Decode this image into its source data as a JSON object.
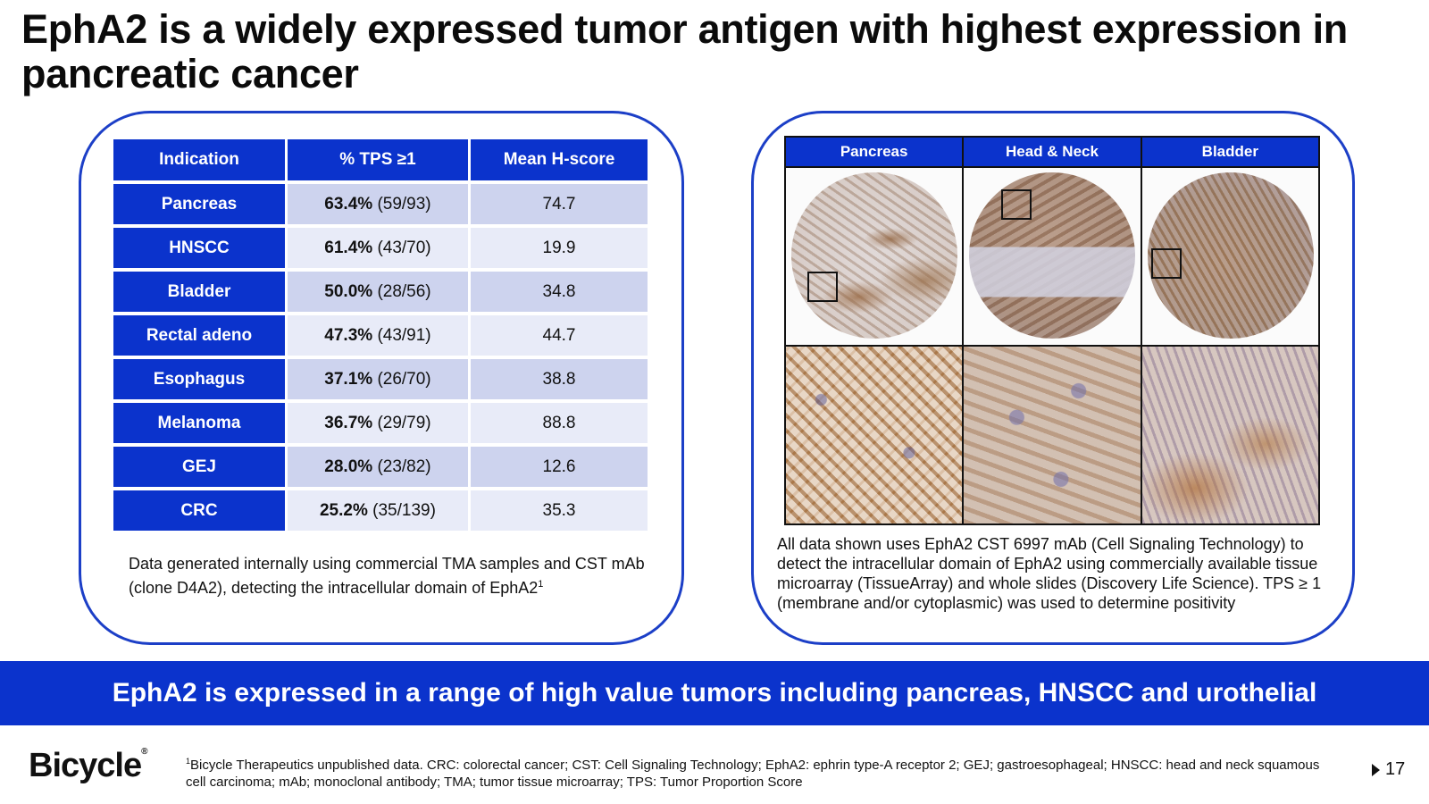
{
  "title": "EphA2 is a widely expressed tumor antigen with highest expression in pancreatic cancer",
  "table": {
    "headers": [
      "Indication",
      "% TPS ≥1",
      "Mean H-score"
    ],
    "rows": [
      {
        "indication": "Pancreas",
        "pct": "63.4%",
        "count": "(59/93)",
        "hscore": "74.7"
      },
      {
        "indication": "HNSCC",
        "pct": "61.4%",
        "count": "(43/70)",
        "hscore": "19.9"
      },
      {
        "indication": "Bladder",
        "pct": "50.0%",
        "count": "(28/56)",
        "hscore": "34.8"
      },
      {
        "indication": "Rectal adeno",
        "pct": "47.3%",
        "count": "(43/91)",
        "hscore": "44.7"
      },
      {
        "indication": "Esophagus",
        "pct": "37.1%",
        "count": "(26/70)",
        "hscore": "38.8"
      },
      {
        "indication": "Melanoma",
        "pct": "36.7%",
        "count": "(29/79)",
        "hscore": "88.8"
      },
      {
        "indication": "GEJ",
        "pct": "28.0%",
        "count": "(23/82)",
        "hscore": "12.6"
      },
      {
        "indication": "CRC",
        "pct": "25.2%",
        "count": "(35/139)",
        "hscore": "35.3"
      }
    ],
    "note": "Data generated internally using commercial TMA samples and CST mAb (clone D4A2), detecting the intracellular domain of EphA2",
    "note_sup": "1"
  },
  "images": {
    "headers": [
      "Pancreas",
      "Head & Neck",
      "Bladder"
    ],
    "note": "All data shown uses EphA2 CST 6997 mAb (Cell Signaling Technology) to detect the intracellular domain of EphA2 using commercially available tissue microarray (TissueArray) and whole slides (Discovery Life Science). TPS ≥ 1 (membrane and/or cytoplasmic) was used to determine positivity"
  },
  "banner": "EphA2 is expressed in a range of high value tumors including pancreas, HNSCC and urothelial",
  "logo": {
    "text": "Bicycle",
    "mark": "®"
  },
  "footnote": {
    "sup": "1",
    "text": "Bicycle Therapeutics unpublished data. CRC: colorectal cancer; CST: Cell Signaling Technology; EphA2: ephrin type-A receptor 2; GEJ; gastroesophageal; HNSCC: head and neck squamous cell carcinoma; mAb; monoclonal antibody; TMA; tumor tissue microarray; TPS: Tumor Proportion Score"
  },
  "page_number": "17",
  "colors": {
    "brand_blue": "#0b33cc",
    "border_blue": "#1c3fc7",
    "row_dark": "#cdd3ee",
    "row_light": "#e8ebf8"
  }
}
